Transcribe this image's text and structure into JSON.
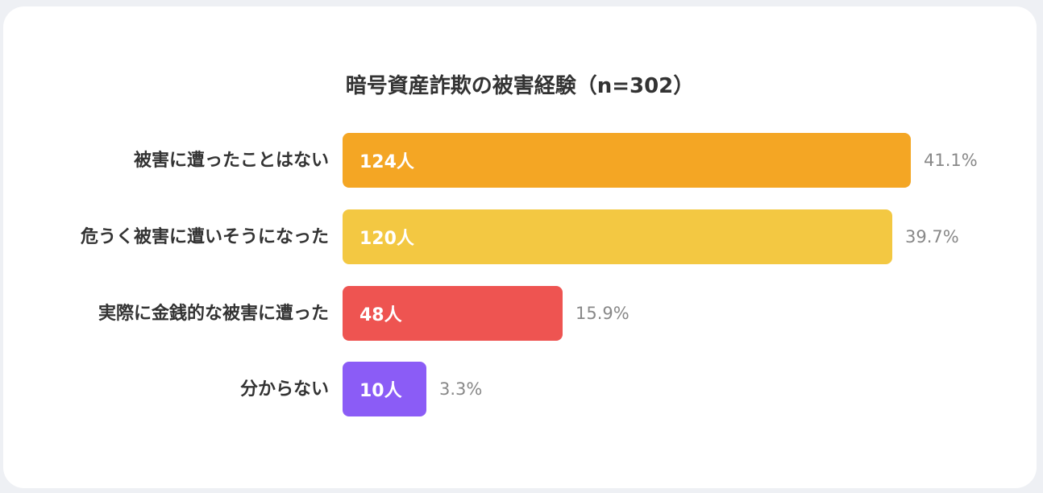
{
  "chart_data": {
    "type": "bar",
    "orientation": "horizontal",
    "title": "暗号資産詐欺の被害経験（n=302）",
    "categories": [
      "被害に遭ったことはない",
      "危うく被害に遭いそうになった",
      "実際に金銭的な被害に遭った",
      "分からない"
    ],
    "values": [
      124,
      120,
      48,
      10
    ],
    "value_labels": [
      "124人",
      "120人",
      "48人",
      "10人"
    ],
    "percent_labels": [
      "41.1%",
      "39.7%",
      "15.9%",
      "3.3%"
    ],
    "colors": [
      "#f4a624",
      "#f3c842",
      "#ee5451",
      "#8b5cf6"
    ],
    "xlim": [
      0,
      124
    ],
    "grid": false,
    "legend": "none"
  }
}
